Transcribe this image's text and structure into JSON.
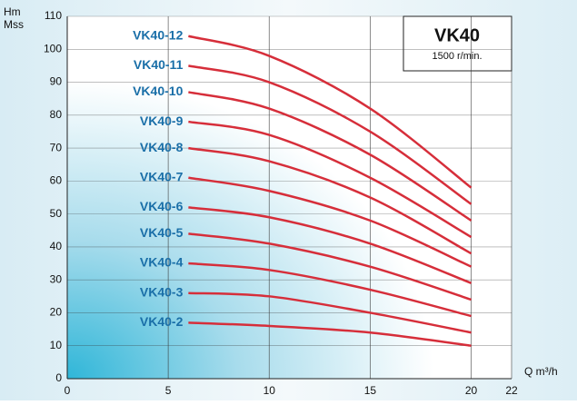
{
  "chart_data": {
    "type": "line",
    "title": "VK40",
    "subtitle": "1500 r/min.",
    "y_label": [
      "Hm",
      "Mss"
    ],
    "x_label": "Q m³/h",
    "xlim": [
      0,
      22
    ],
    "xticks": [
      0,
      5,
      10,
      15,
      20,
      22
    ],
    "ylim": [
      0,
      110
    ],
    "yticks": [
      0,
      10,
      20,
      30,
      40,
      50,
      60,
      70,
      80,
      90,
      100,
      110
    ],
    "grid": true,
    "x": [
      6,
      10,
      15,
      20
    ],
    "series": [
      {
        "name": "VK40-12",
        "color": "#d62e3a",
        "values": [
          104,
          98,
          82,
          58
        ]
      },
      {
        "name": "VK40-11",
        "color": "#d62e3a",
        "values": [
          95,
          90,
          75,
          53
        ]
      },
      {
        "name": "VK40-10",
        "color": "#d62e3a",
        "values": [
          87,
          82,
          68,
          48
        ]
      },
      {
        "name": "VK40-9",
        "color": "#d62e3a",
        "values": [
          78,
          74,
          61,
          43
        ]
      },
      {
        "name": "VK40-8",
        "color": "#d62e3a",
        "values": [
          70,
          66,
          55,
          38
        ]
      },
      {
        "name": "VK40-7",
        "color": "#d62e3a",
        "values": [
          61,
          57,
          48,
          34
        ]
      },
      {
        "name": "VK40-6",
        "color": "#d62e3a",
        "values": [
          52,
          49,
          41,
          29
        ]
      },
      {
        "name": "VK40-5",
        "color": "#d62e3a",
        "values": [
          44,
          41,
          34,
          24
        ]
      },
      {
        "name": "VK40-4",
        "color": "#d62e3a",
        "values": [
          35,
          33,
          27,
          19
        ]
      },
      {
        "name": "VK40-3",
        "color": "#d62e3a",
        "values": [
          26,
          25,
          20,
          14
        ]
      },
      {
        "name": "VK40-2",
        "color": "#d62e3a",
        "values": [
          17,
          16,
          14,
          10
        ]
      }
    ]
  }
}
